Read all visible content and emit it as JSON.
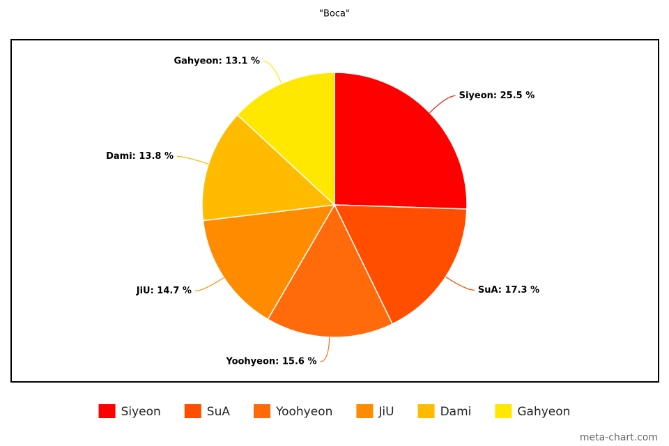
{
  "chart_data": {
    "type": "pie",
    "title": "\"Boca\"",
    "categories": [
      "Siyeon",
      "SuA",
      "Yoohyeon",
      "JiU",
      "Dami",
      "Gahyeon"
    ],
    "values": [
      25.5,
      17.3,
      15.6,
      14.7,
      13.8,
      13.1
    ],
    "value_labels": [
      "Siyeon: 25.5 %",
      "SuA: 17.3 %",
      "Yoohyeon: 15.6 %",
      "JiU: 14.7 %",
      "Dami: 13.8 %",
      "Gahyeon: 13.1 %"
    ],
    "colors": [
      "#ff0000",
      "#ff4e00",
      "#ff6a0a",
      "#ff8c00",
      "#ffbb00",
      "#ffe800"
    ],
    "legend": "bottom",
    "watermark": "meta-chart.com"
  }
}
